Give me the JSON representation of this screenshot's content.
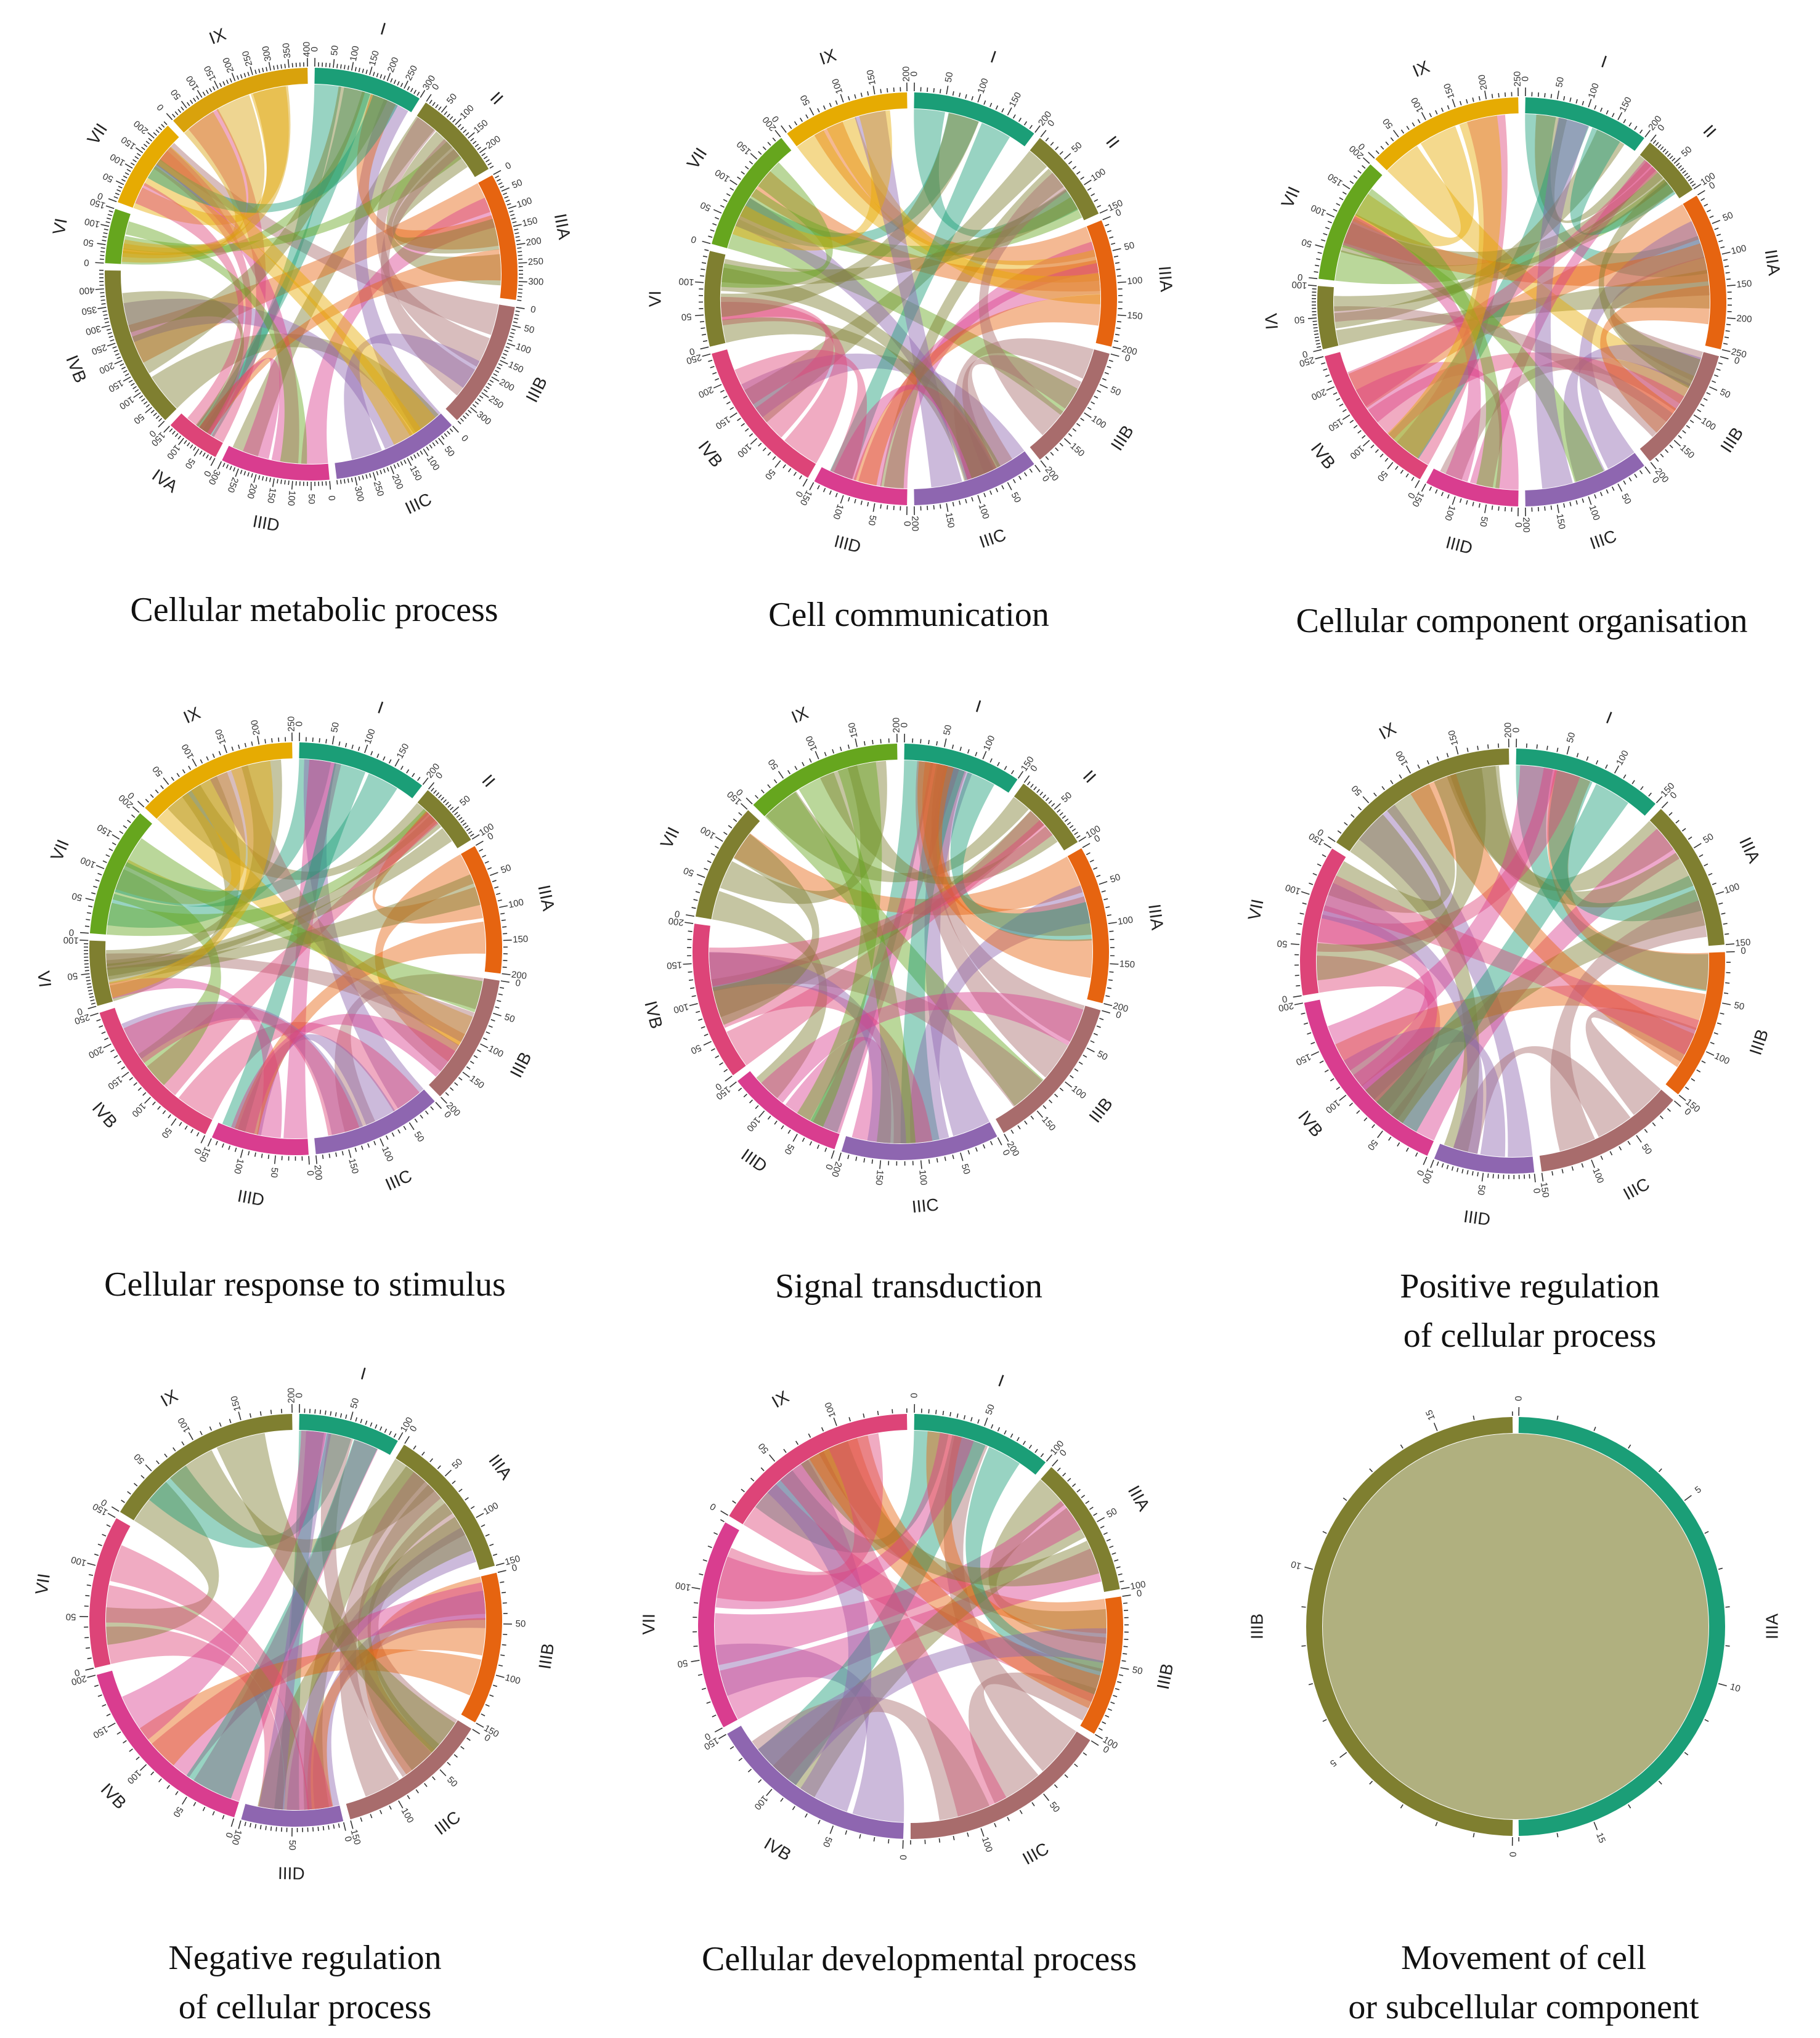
{
  "chart_data": [
    {
      "type": "chord",
      "title": "Cellular metabolic process",
      "segments": [
        {
          "label": "I",
          "max": 300,
          "color": "#1b9e77",
          "ticks": [
            0,
            50,
            100,
            150,
            200,
            250,
            300
          ]
        },
        {
          "label": "II",
          "max": 250,
          "color": "#7f7f30",
          "ticks": [
            0,
            50,
            100,
            150,
            200
          ]
        },
        {
          "label": "IIIA",
          "max": 350,
          "color": "#e66410",
          "ticks": [
            0,
            50,
            100,
            150,
            200,
            250,
            300
          ]
        },
        {
          "label": "IIIB",
          "max": 350,
          "color": "#a86c6c",
          "ticks": [
            0,
            50,
            100,
            150,
            200,
            250,
            300
          ]
        },
        {
          "label": "IIIC",
          "max": 350,
          "color": "#8e66b0",
          "ticks": [
            0,
            50,
            100,
            150,
            200,
            250,
            300
          ]
        },
        {
          "label": "IIID",
          "max": 300,
          "color": "#d93d8f",
          "ticks": [
            0,
            50,
            100,
            150,
            200,
            250,
            300
          ]
        },
        {
          "label": "IVA",
          "max": 150,
          "color": "#dd4478",
          "ticks": [
            0,
            50,
            100,
            150
          ]
        },
        {
          "label": "IVB",
          "max": 450,
          "color": "#7f7f30",
          "ticks": [
            0,
            50,
            100,
            150,
            200,
            250,
            300,
            350,
            400
          ]
        },
        {
          "label": "VI",
          "max": 150,
          "color": "#66a61e",
          "ticks": [
            0,
            50,
            100,
            150
          ]
        },
        {
          "label": "VII",
          "max": 250,
          "color": "#e6ab02",
          "ticks": [
            0,
            50,
            100,
            150,
            200
          ]
        },
        {
          "label": "IX",
          "max": 400,
          "color": "#d9a20c",
          "ticks": [
            0,
            50,
            100,
            150,
            200,
            250,
            300,
            350,
            400
          ]
        }
      ]
    },
    {
      "type": "chord",
      "title": "Cell communication",
      "segments": [
        {
          "label": "I",
          "max": 200,
          "color": "#1b9e77",
          "ticks": [
            0,
            50,
            100,
            150,
            200
          ]
        },
        {
          "label": "II",
          "max": 150,
          "color": "#7f7f30",
          "ticks": [
            0,
            50,
            100,
            150
          ]
        },
        {
          "label": "IIIA",
          "max": 200,
          "color": "#e66410",
          "ticks": [
            0,
            50,
            100,
            150,
            200
          ]
        },
        {
          "label": "IIIB",
          "max": 200,
          "color": "#a86c6c",
          "ticks": [
            0,
            50,
            100,
            150,
            200
          ]
        },
        {
          "label": "IIIC",
          "max": 200,
          "color": "#8e66b0",
          "ticks": [
            0,
            50,
            100,
            150,
            200
          ]
        },
        {
          "label": "IIID",
          "max": 150,
          "color": "#d93d8f",
          "ticks": [
            0,
            50,
            100,
            150
          ]
        },
        {
          "label": "IVB",
          "max": 250,
          "color": "#dd4478",
          "ticks": [
            0,
            50,
            100,
            150,
            200,
            250
          ]
        },
        {
          "label": "VI",
          "max": 150,
          "color": "#7f7f30",
          "ticks": [
            0,
            50,
            100
          ]
        },
        {
          "label": "VII",
          "max": 200,
          "color": "#66a61e",
          "ticks": [
            0,
            50,
            100,
            150,
            200
          ]
        },
        {
          "label": "IX",
          "max": 200,
          "color": "#e6ab02",
          "ticks": [
            0,
            50,
            100,
            150,
            200
          ]
        }
      ]
    },
    {
      "type": "chord",
      "title": "Cellular component organisation",
      "segments": [
        {
          "label": "I",
          "max": 200,
          "color": "#1b9e77",
          "ticks": [
            0,
            50,
            100,
            150,
            200
          ]
        },
        {
          "label": "II",
          "max": 100,
          "color": "#7f7f30",
          "ticks": [
            0,
            50,
            100
          ]
        },
        {
          "label": "IIIA",
          "max": 250,
          "color": "#e66410",
          "ticks": [
            0,
            50,
            100,
            150,
            200,
            250
          ]
        },
        {
          "label": "IIIB",
          "max": 200,
          "color": "#a86c6c",
          "ticks": [
            0,
            50,
            100,
            150,
            200
          ]
        },
        {
          "label": "IIIC",
          "max": 200,
          "color": "#8e66b0",
          "ticks": [
            0,
            50,
            100,
            150,
            200
          ]
        },
        {
          "label": "IIID",
          "max": 150,
          "color": "#d93d8f",
          "ticks": [
            0,
            50,
            100,
            150
          ]
        },
        {
          "label": "IVB",
          "max": 250,
          "color": "#dd4478",
          "ticks": [
            0,
            50,
            100,
            150,
            200,
            250
          ]
        },
        {
          "label": "VI",
          "max": 100,
          "color": "#7f7f30",
          "ticks": [
            0,
            50,
            100
          ]
        },
        {
          "label": "VII",
          "max": 200,
          "color": "#66a61e",
          "ticks": [
            0,
            50,
            100,
            150,
            200
          ]
        },
        {
          "label": "IX",
          "max": 250,
          "color": "#e6ab02",
          "ticks": [
            0,
            50,
            100,
            150,
            200,
            250
          ]
        }
      ]
    },
    {
      "type": "chord",
      "title": "Cellular response to stimulus",
      "segments": [
        {
          "label": "I",
          "max": 200,
          "color": "#1b9e77",
          "ticks": [
            0,
            50,
            100,
            150,
            200
          ]
        },
        {
          "label": "II",
          "max": 100,
          "color": "#7f7f30",
          "ticks": [
            0,
            50,
            100
          ]
        },
        {
          "label": "IIIA",
          "max": 200,
          "color": "#e66410",
          "ticks": [
            0,
            50,
            100,
            150,
            200
          ]
        },
        {
          "label": "IIIB",
          "max": 200,
          "color": "#a86c6c",
          "ticks": [
            0,
            50,
            100,
            150,
            200
          ]
        },
        {
          "label": "IIIC",
          "max": 200,
          "color": "#8e66b0",
          "ticks": [
            0,
            50,
            100,
            150,
            200
          ]
        },
        {
          "label": "IIID",
          "max": 150,
          "color": "#d93d8f",
          "ticks": [
            0,
            50,
            100,
            150
          ]
        },
        {
          "label": "IVB",
          "max": 250,
          "color": "#dd4478",
          "ticks": [
            0,
            50,
            100,
            150,
            200,
            250
          ]
        },
        {
          "label": "VI",
          "max": 100,
          "color": "#7f7f30",
          "ticks": [
            0,
            50,
            100
          ]
        },
        {
          "label": "VII",
          "max": 200,
          "color": "#66a61e",
          "ticks": [
            0,
            50,
            100,
            150,
            200
          ]
        },
        {
          "label": "IX",
          "max": 250,
          "color": "#e6ab02",
          "ticks": [
            0,
            50,
            100,
            150,
            200,
            250
          ]
        }
      ]
    },
    {
      "type": "chord",
      "title": "Signal transduction",
      "segments": [
        {
          "label": "I",
          "max": 150,
          "color": "#1b9e77",
          "ticks": [
            0,
            50,
            100,
            150
          ]
        },
        {
          "label": "II",
          "max": 100,
          "color": "#7f7f30",
          "ticks": [
            0,
            50,
            100
          ]
        },
        {
          "label": "IIIA",
          "max": 200,
          "color": "#e66410",
          "ticks": [
            0,
            50,
            100,
            150,
            200
          ]
        },
        {
          "label": "IIIB",
          "max": 200,
          "color": "#a86c6c",
          "ticks": [
            0,
            50,
            100,
            150,
            200
          ]
        },
        {
          "label": "IIIC",
          "max": 200,
          "color": "#8e66b0",
          "ticks": [
            0,
            50,
            100,
            150,
            200
          ]
        },
        {
          "label": "IIID",
          "max": 150,
          "color": "#d93d8f",
          "ticks": [
            0,
            50,
            100,
            150
          ]
        },
        {
          "label": "IVB",
          "max": 200,
          "color": "#dd4478",
          "ticks": [
            0,
            50,
            100,
            150,
            200
          ]
        },
        {
          "label": "VII",
          "max": 150,
          "color": "#7f7f30",
          "ticks": [
            0,
            50,
            100,
            150
          ]
        },
        {
          "label": "IX",
          "max": 200,
          "color": "#66a61e",
          "ticks": [
            0,
            50,
            100,
            150,
            200
          ]
        }
      ]
    },
    {
      "type": "chord",
      "title": "Positive regulation of cellular process",
      "segments": [
        {
          "label": "I",
          "max": 150,
          "color": "#1b9e77",
          "ticks": [
            0,
            50,
            100,
            150
          ]
        },
        {
          "label": "IIIA",
          "max": 150,
          "color": "#7f7f30",
          "ticks": [
            0,
            50,
            100,
            150
          ]
        },
        {
          "label": "IIIB",
          "max": 150,
          "color": "#e66410",
          "ticks": [
            0,
            50,
            100,
            150
          ]
        },
        {
          "label": "IIIC",
          "max": 150,
          "color": "#a86c6c",
          "ticks": [
            0,
            50,
            100,
            150
          ]
        },
        {
          "label": "IIID",
          "max": 100,
          "color": "#8e66b0",
          "ticks": [
            0,
            50,
            100
          ]
        },
        {
          "label": "IVB",
          "max": 200,
          "color": "#d93d8f",
          "ticks": [
            0,
            50,
            100,
            150,
            200
          ]
        },
        {
          "label": "VII",
          "max": 150,
          "color": "#dd4478",
          "ticks": [
            0,
            50,
            100,
            150
          ]
        },
        {
          "label": "IX",
          "max": 200,
          "color": "#7f7f30",
          "ticks": [
            0,
            50,
            100,
            150,
            200
          ]
        }
      ]
    },
    {
      "type": "chord",
      "title": "Negative regulation of cellular process",
      "segments": [
        {
          "label": "I",
          "max": 100,
          "color": "#1b9e77",
          "ticks": [
            0,
            50,
            100
          ]
        },
        {
          "label": "IIIA",
          "max": 150,
          "color": "#7f7f30",
          "ticks": [
            0,
            50,
            100,
            150
          ]
        },
        {
          "label": "IIIB",
          "max": 150,
          "color": "#e66410",
          "ticks": [
            0,
            50,
            100,
            150
          ]
        },
        {
          "label": "IIIC",
          "max": 150,
          "color": "#a86c6c",
          "ticks": [
            0,
            50,
            100,
            150
          ]
        },
        {
          "label": "IIID",
          "max": 100,
          "color": "#8e66b0",
          "ticks": [
            0,
            50,
            100
          ]
        },
        {
          "label": "IVB",
          "max": 200,
          "color": "#d93d8f",
          "ticks": [
            0,
            50,
            100,
            150,
            200
          ]
        },
        {
          "label": "VII",
          "max": 150,
          "color": "#dd4478",
          "ticks": [
            0,
            50,
            100,
            150
          ]
        },
        {
          "label": "IX",
          "max": 200,
          "color": "#7f7f30",
          "ticks": [
            0,
            50,
            100,
            150,
            200
          ]
        }
      ]
    },
    {
      "type": "chord",
      "title": "Cellular developmental process",
      "segments": [
        {
          "label": "I",
          "max": 100,
          "color": "#1b9e77",
          "ticks": [
            0,
            50,
            100
          ]
        },
        {
          "label": "IIIA",
          "max": 100,
          "color": "#7f7f30",
          "ticks": [
            0,
            50,
            100
          ]
        },
        {
          "label": "IIIB",
          "max": 100,
          "color": "#e66410",
          "ticks": [
            0,
            50,
            100
          ]
        },
        {
          "label": "IIIC",
          "max": 150,
          "color": "#a86c6c",
          "ticks": [
            0,
            50,
            100
          ]
        },
        {
          "label": "IVB",
          "max": 150,
          "color": "#8e66b0",
          "ticks": [
            0,
            50,
            100,
            150
          ]
        },
        {
          "label": "VII",
          "max": 150,
          "color": "#d93d8f",
          "ticks": [
            0,
            50,
            100
          ]
        },
        {
          "label": "IX",
          "max": 150,
          "color": "#dd4478",
          "ticks": [
            0,
            50,
            100
          ]
        }
      ]
    },
    {
      "type": "chord",
      "title": "Movement of cell or subcellular component",
      "segments": [
        {
          "label": "IIIA",
          "max": 17,
          "color": "#1b9e77",
          "ticks": [
            0,
            5,
            10,
            15
          ]
        },
        {
          "label": "IIIB",
          "max": 17,
          "color": "#7f7f30",
          "ticks": [
            0,
            5,
            10,
            15
          ]
        }
      ]
    }
  ],
  "captions": [
    [
      "Cellular metabolic process"
    ],
    [
      "Cell communication"
    ],
    [
      "Cellular component organisation"
    ],
    [
      "Cellular response to stimulus"
    ],
    [
      "Signal transduction"
    ],
    [
      "Positive regulation",
      "of cellular process"
    ],
    [
      "Negative regulation",
      "of cellular process"
    ],
    [
      "Cellular developmental process"
    ],
    [
      "Movement of cell",
      "or subcellular component"
    ]
  ]
}
